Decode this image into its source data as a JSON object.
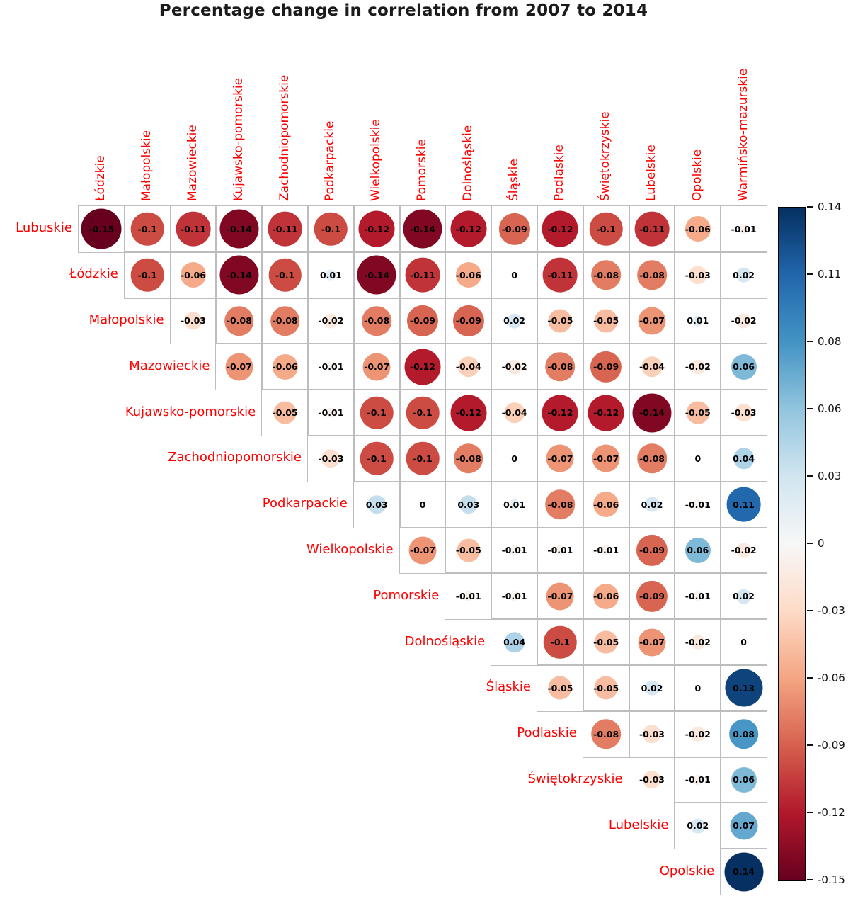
{
  "chart_data": {
    "type": "heatmap",
    "subtype": "correlation-circle-matrix-upper-triangle",
    "title": "Percentage change in correlation from 2007 to 2014",
    "columns": [
      "Łódzkie",
      "Małopolskie",
      "Mazowieckie",
      "Kujawsko-pomorskie",
      "Zachodniopomorskie",
      "Podkarpackie",
      "Wielkopolskie",
      "Pomorskie",
      "Dolnośląskie",
      "Śląskie",
      "Podlaskie",
      "Świętokrzyskie",
      "Lubelskie",
      "Opolskie",
      "Warmińsko-mazurskie"
    ],
    "rows": [
      {
        "label": "Lubuskie",
        "values": [
          -0.15,
          -0.1,
          -0.11,
          -0.14,
          -0.11,
          -0.1,
          -0.12,
          -0.14,
          -0.12,
          -0.09,
          -0.12,
          -0.1,
          -0.11,
          -0.06,
          -0.01
        ]
      },
      {
        "label": "Łódzkie",
        "values": [
          -0.1,
          -0.06,
          -0.14,
          -0.1,
          0.01,
          -0.14,
          -0.11,
          -0.06,
          0,
          -0.11,
          -0.08,
          -0.08,
          -0.03,
          0.02
        ]
      },
      {
        "label": "Małopolskie",
        "values": [
          -0.03,
          -0.08,
          -0.08,
          -0.02,
          -0.08,
          -0.09,
          -0.09,
          0.02,
          -0.05,
          -0.05,
          -0.07,
          0.01,
          -0.02
        ]
      },
      {
        "label": "Mazowieckie",
        "values": [
          -0.07,
          -0.06,
          -0.01,
          -0.07,
          -0.12,
          -0.04,
          -0.02,
          -0.08,
          -0.09,
          -0.04,
          -0.02,
          0.06
        ]
      },
      {
        "label": "Kujawsko-pomorskie",
        "values": [
          -0.05,
          -0.01,
          -0.1,
          -0.1,
          -0.12,
          -0.04,
          -0.12,
          -0.12,
          -0.14,
          -0.05,
          -0.03
        ]
      },
      {
        "label": "Zachodniopomorskie",
        "values": [
          -0.03,
          -0.1,
          -0.1,
          -0.08,
          0,
          -0.07,
          -0.07,
          -0.08,
          0,
          0.04
        ]
      },
      {
        "label": "Podkarpackie",
        "values": [
          0.03,
          0,
          0.03,
          0.01,
          -0.08,
          -0.06,
          0.02,
          -0.01,
          0.11
        ]
      },
      {
        "label": "Wielkopolskie",
        "values": [
          -0.07,
          -0.05,
          -0.01,
          -0.01,
          -0.01,
          -0.09,
          0.06,
          -0.02
        ]
      },
      {
        "label": "Pomorskie",
        "values": [
          -0.01,
          -0.01,
          -0.07,
          -0.06,
          -0.09,
          -0.01,
          0.02
        ]
      },
      {
        "label": "Dolnośląskie",
        "values": [
          0.04,
          -0.1,
          -0.05,
          -0.07,
          -0.02,
          0
        ]
      },
      {
        "label": "Śląskie",
        "values": [
          -0.05,
          -0.05,
          0.02,
          0,
          0.13
        ]
      },
      {
        "label": "Podlaskie",
        "values": [
          -0.08,
          -0.03,
          -0.02,
          0.08
        ]
      },
      {
        "label": "Świętokrzyskie",
        "values": [
          -0.03,
          -0.01,
          0.06
        ]
      },
      {
        "label": "Lubelskie",
        "values": [
          0.02,
          0.07
        ]
      },
      {
        "label": "Opolskie",
        "values": [
          0.14
        ]
      }
    ],
    "scale": {
      "min": -0.15,
      "max": 0.14,
      "max_abs_for_size": 0.15
    },
    "colorbar_ticks": [
      "0.14",
      "0.11",
      "0.08",
      "0.06",
      "0.03",
      "0",
      "-0.03",
      "-0.06",
      "-0.09",
      "-0.12",
      "-0.15"
    ],
    "palette": [
      "#67001F",
      "#B2182B",
      "#D6604D",
      "#F4A582",
      "#FDDBC7",
      "#F7F7F7",
      "#D1E5F0",
      "#92C5DE",
      "#4393C4",
      "#2166AC",
      "#053061"
    ],
    "legend_position": "right",
    "grid": "on",
    "colors": {
      "axis_label": "#ff0000",
      "cell_value": "#000000",
      "grid_line": "#bdbdbd",
      "colorbar_border": "#000000",
      "tick_label": "#111111",
      "title": "#1b1b1b"
    }
  }
}
